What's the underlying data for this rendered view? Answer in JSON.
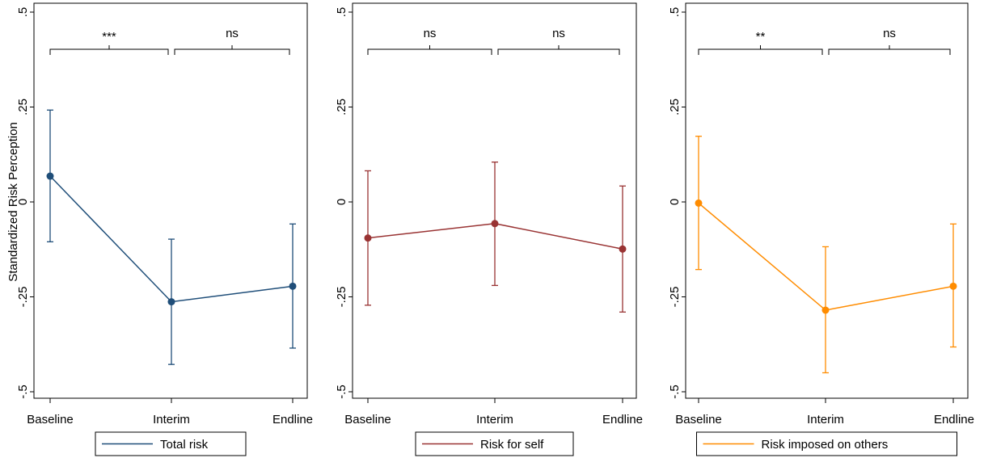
{
  "y_axis_title": "Standardized Risk Perception",
  "chart_data": [
    {
      "type": "line",
      "categories": [
        "Baseline",
        "Interim",
        "Endline"
      ],
      "ylim": [
        -0.5,
        0.5
      ],
      "yticks": [
        0.5,
        0.25,
        0,
        -0.25,
        -0.5
      ],
      "ytick_labels": [
        ".5",
        ".25",
        "0",
        "-.25",
        "-.5"
      ],
      "ylabel": "Standardized Risk Perception",
      "color": "#1f4e79",
      "series": [
        {
          "name": "Total risk",
          "values": [
            0.068,
            -0.263,
            -0.222
          ],
          "ci_low": [
            -0.105,
            -0.428,
            -0.385
          ],
          "ci_high": [
            0.242,
            -0.098,
            -0.058
          ]
        }
      ],
      "brackets": [
        {
          "from": 0,
          "to": 1,
          "label": "***"
        },
        {
          "from": 1,
          "to": 2,
          "label": "ns"
        }
      ],
      "legend": {
        "label": "Total risk",
        "position": "bottom"
      }
    },
    {
      "type": "line",
      "categories": [
        "Baseline",
        "Interim",
        "Endline"
      ],
      "ylim": [
        -0.5,
        0.5
      ],
      "yticks": [
        0.5,
        0.25,
        0,
        -0.25,
        -0.5
      ],
      "ytick_labels": [
        ".5",
        ".25",
        "0",
        "-.25",
        "-.5"
      ],
      "ylabel": "",
      "color": "#993333",
      "series": [
        {
          "name": "Risk for self",
          "values": [
            -0.095,
            -0.057,
            -0.124
          ],
          "ci_low": [
            -0.272,
            -0.22,
            -0.29
          ],
          "ci_high": [
            0.082,
            0.105,
            0.042
          ]
        }
      ],
      "brackets": [
        {
          "from": 0,
          "to": 1,
          "label": "ns"
        },
        {
          "from": 1,
          "to": 2,
          "label": "ns"
        }
      ],
      "legend": {
        "label": "Risk for self",
        "position": "bottom"
      }
    },
    {
      "type": "line",
      "categories": [
        "Baseline",
        "Interim",
        "Endline"
      ],
      "ylim": [
        -0.5,
        0.5
      ],
      "yticks": [
        0.5,
        0.25,
        0,
        -0.25,
        -0.5
      ],
      "ytick_labels": [
        ".5",
        ".25",
        "0",
        "-.25",
        "-.5"
      ],
      "ylabel": "",
      "color": "#ff8c00",
      "series": [
        {
          "name": "Risk imposed on others",
          "values": [
            -0.003,
            -0.285,
            -0.222
          ],
          "ci_low": [
            -0.178,
            -0.45,
            -0.382
          ],
          "ci_high": [
            0.173,
            -0.118,
            -0.058
          ]
        }
      ],
      "brackets": [
        {
          "from": 0,
          "to": 1,
          "label": "**"
        },
        {
          "from": 1,
          "to": 2,
          "label": "ns"
        }
      ],
      "legend": {
        "label": "Risk imposed on others",
        "position": "bottom"
      }
    }
  ]
}
